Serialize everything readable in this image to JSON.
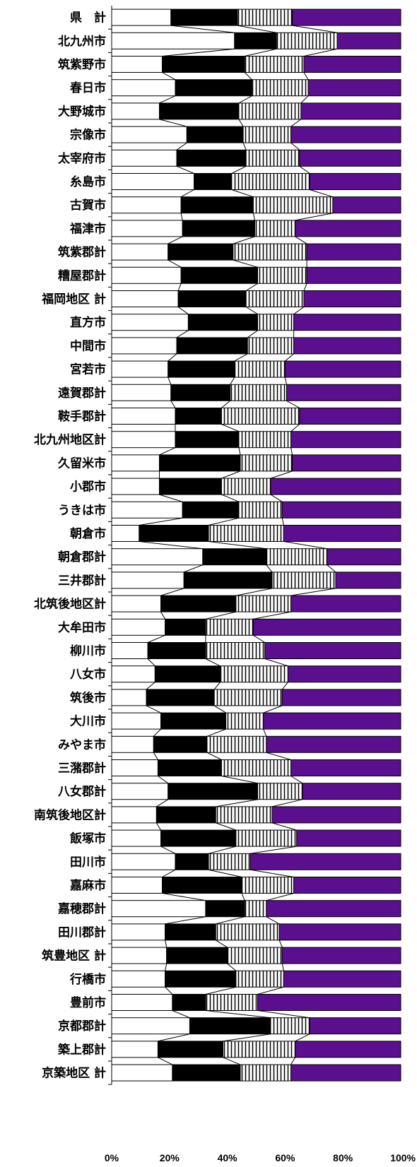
{
  "chart_data": {
    "type": "bar",
    "stacked": "percent",
    "orientation": "horizontal",
    "title": "",
    "xlabel": "",
    "ylabel": "",
    "xlim": [
      0,
      100
    ],
    "xticks": [
      "0%",
      "20%",
      "40%",
      "60%",
      "80%",
      "100%"
    ],
    "grid": false,
    "legend": "none",
    "categories": [
      "県　計",
      "北九州市",
      "筑紫野市",
      "春日市",
      "大野城市",
      "宗像市",
      "太宰府市",
      "糸島市",
      "古賀市",
      "福津市",
      "筑紫郡計",
      "糟屋郡計",
      "福岡地区 計",
      "直方市",
      "中間市",
      "宮若市",
      "遠賀郡計",
      "鞍手郡計",
      "北九州地区計",
      "久留米市",
      "小郡市",
      "うきは市",
      "朝倉市",
      "朝倉郡計",
      "三井郡計",
      "北筑後地区計",
      "大牟田市",
      "柳川市",
      "八女市",
      "筑後市",
      "大川市",
      "みやま市",
      "三潴郡計",
      "八女郡計",
      "南筑後地区計",
      "飯塚市",
      "田川市",
      "嘉麻市",
      "嘉穂郡計",
      "田川郡計",
      "筑豊地区 計",
      "行橋市",
      "豊前市",
      "京都郡計",
      "築上郡計",
      "京築地区 計"
    ],
    "series": [
      {
        "name": "",
        "color": "#ffffff",
        "pattern": "solid",
        "values": [
          20.5,
          42.5,
          17.5,
          22.0,
          16.5,
          26.0,
          22.5,
          28.5,
          24.0,
          24.5,
          19.5,
          24.0,
          23.0,
          26.5,
          22.5,
          19.5,
          20.5,
          22.0,
          22.0,
          16.5,
          16.5,
          24.5,
          9.5,
          31.5,
          25.0,
          17.0,
          18.5,
          12.5,
          15.0,
          12.0,
          17.0,
          14.5,
          16.0,
          19.5,
          15.5,
          17.0,
          22.0,
          17.5,
          32.5,
          18.5,
          19.0,
          18.5,
          21.0,
          27.0,
          16.0,
          21.0
        ]
      },
      {
        "name": "",
        "color": "#000000",
        "pattern": "solid",
        "values": [
          23.0,
          14.5,
          28.5,
          26.5,
          27.5,
          19.5,
          24.0,
          13.0,
          25.0,
          25.0,
          22.5,
          26.5,
          23.5,
          24.0,
          24.5,
          23.0,
          20.5,
          16.0,
          22.0,
          28.0,
          21.5,
          19.5,
          24.0,
          22.0,
          30.5,
          26.0,
          14.0,
          20.0,
          22.5,
          23.5,
          22.5,
          18.5,
          22.0,
          31.0,
          20.5,
          26.0,
          11.5,
          27.5,
          13.5,
          17.5,
          21.0,
          24.5,
          11.5,
          28.0,
          22.5,
          23.5
        ]
      },
      {
        "name": "",
        "color": "#ffffff",
        "pattern": "vertical-lines",
        "values": [
          19.0,
          21.0,
          20.5,
          19.5,
          21.5,
          16.5,
          18.5,
          27.0,
          27.5,
          14.0,
          25.5,
          17.0,
          20.0,
          12.5,
          16.0,
          17.5,
          19.5,
          27.0,
          18.0,
          18.0,
          17.0,
          15.0,
          26.0,
          21.0,
          22.0,
          19.0,
          16.5,
          20.5,
          23.5,
          23.5,
          13.0,
          20.5,
          24.0,
          15.5,
          19.5,
          21.0,
          14.5,
          18.0,
          7.5,
          22.0,
          19.0,
          16.5,
          18.0,
          13.5,
          25.0,
          17.5
        ]
      },
      {
        "name": "",
        "color": "#5a0f8e",
        "pattern": "solid",
        "values": [
          37.5,
          22.0,
          33.5,
          32.0,
          34.5,
          38.0,
          35.0,
          31.5,
          23.5,
          36.5,
          32.5,
          32.5,
          33.5,
          37.0,
          37.0,
          40.0,
          39.5,
          35.0,
          38.0,
          37.5,
          45.0,
          41.0,
          40.5,
          25.5,
          22.5,
          38.0,
          51.0,
          47.0,
          39.0,
          41.0,
          47.5,
          46.5,
          38.0,
          34.0,
          44.5,
          36.0,
          52.0,
          37.0,
          46.5,
          42.0,
          41.0,
          40.5,
          49.5,
          31.5,
          36.5,
          38.0
        ]
      }
    ]
  }
}
